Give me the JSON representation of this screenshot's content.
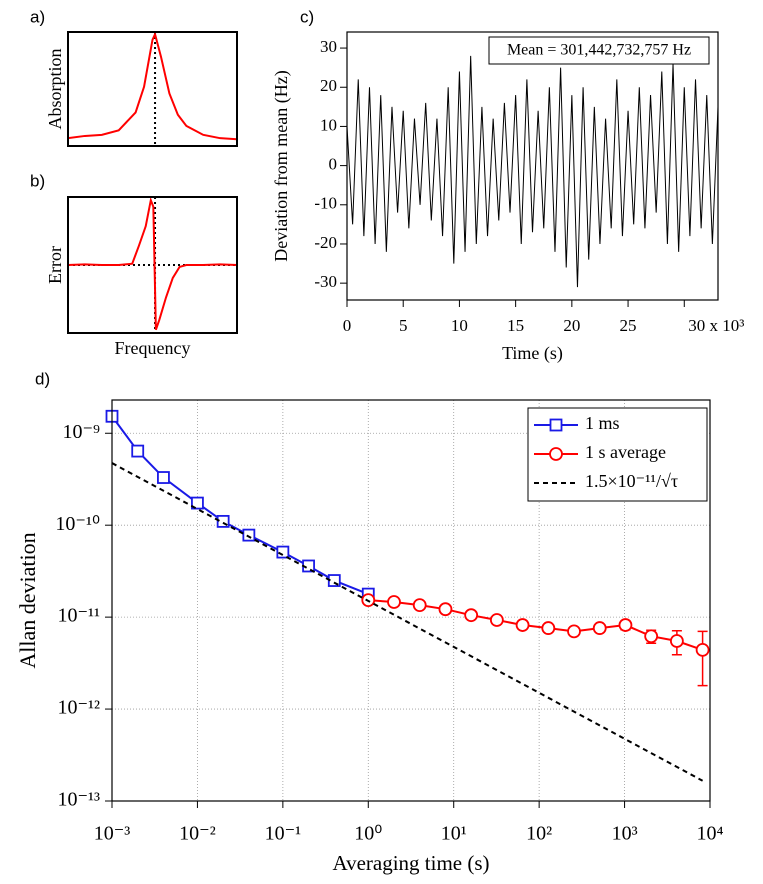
{
  "chart_data": [
    {
      "type": "line",
      "panel": "a)",
      "ylabel": "Absorption",
      "xlim": [
        0,
        1
      ],
      "ylim": [
        0,
        1.02
      ],
      "marker_x": 0.515,
      "series": [
        {
          "color": "#ff0000",
          "x": [
            0,
            0.1,
            0.2,
            0.3,
            0.4,
            0.45,
            0.5,
            0.515,
            0.55,
            0.6,
            0.65,
            0.7,
            0.8,
            0.9,
            1
          ],
          "values": [
            0.07,
            0.09,
            0.1,
            0.14,
            0.3,
            0.53,
            0.95,
            1.0,
            0.8,
            0.47,
            0.28,
            0.18,
            0.1,
            0.07,
            0.06
          ]
        }
      ]
    },
    {
      "type": "line",
      "panel": "b)",
      "ylabel": "Error",
      "xlabel": "Frequency",
      "xlim": [
        0,
        1
      ],
      "ylim": [
        -1.05,
        1.05
      ],
      "marker_x": 0.515,
      "marker_y": 0,
      "series": [
        {
          "color": "#ff0000",
          "x": [
            0,
            0.1,
            0.2,
            0.3,
            0.38,
            0.42,
            0.46,
            0.49,
            0.505,
            0.52,
            0.54,
            0.58,
            0.62,
            0.66,
            0.7,
            0.8,
            0.9,
            1
          ],
          "values": [
            0,
            0.01,
            0,
            0,
            0.02,
            0.3,
            0.6,
            1.0,
            0.9,
            -1.0,
            -0.85,
            -0.5,
            -0.2,
            -0.03,
            0,
            0,
            0.01,
            0
          ]
        }
      ]
    },
    {
      "type": "line",
      "panel": "c)",
      "ylabel": "Deviation from mean (Hz)",
      "xlabel": "Time (s)",
      "annotation": "Mean = 301,442,732,757 Hz",
      "xlim": [
        0,
        33
      ],
      "ylim": [
        -34.3,
        34.1
      ],
      "xticks": [
        0,
        5,
        10,
        15,
        20,
        25,
        {
          "value": 30,
          "label": "30 x 10³"
        }
      ],
      "yticks": [
        -30,
        -20,
        -10,
        0,
        10,
        20,
        30
      ],
      "series": [
        {
          "color": "#000000",
          "x": [
            0,
            0.5,
            1,
            1.5,
            2,
            2.5,
            3,
            3.5,
            4,
            4.5,
            5,
            5.5,
            6,
            6.5,
            7,
            7.5,
            8,
            8.5,
            9,
            9.5,
            10,
            10.5,
            11,
            11.5,
            12,
            12.5,
            13,
            13.5,
            14,
            14.5,
            15,
            15.5,
            16,
            16.5,
            17,
            17.5,
            18,
            18.5,
            19,
            19.5,
            20,
            20.5,
            21,
            21.5,
            22,
            22.5,
            23,
            23.5,
            24,
            24.5,
            25,
            25.5,
            26,
            26.5,
            27,
            27.5,
            28,
            28.5,
            29,
            29.5,
            30,
            30.5,
            31,
            31.5,
            32,
            32.5,
            33
          ],
          "values": [
            10,
            -15,
            22,
            -18,
            20,
            -20,
            18,
            -22,
            15,
            -12,
            14,
            -16,
            12,
            -10,
            16,
            -14,
            12,
            -18,
            20,
            -25,
            24,
            -22,
            28,
            -20,
            15,
            -18,
            12,
            -14,
            16,
            -12,
            18,
            -20,
            22,
            -17,
            14,
            -16,
            20,
            -22,
            25,
            -26,
            18,
            -31,
            20,
            -24,
            15,
            -20,
            12,
            -16,
            22,
            -18,
            14,
            -15,
            20,
            -16,
            18,
            -12,
            24,
            -20,
            26,
            -22,
            20,
            -18,
            22,
            -16,
            18,
            -20,
            15
          ]
        }
      ]
    },
    {
      "type": "line",
      "panel": "d)",
      "ylabel": "Allan deviation",
      "xlabel": "Averaging time (s)",
      "xscale": "log",
      "yscale": "log",
      "grid": true,
      "legend": "upper right",
      "xlim": [
        0.001,
        10000
      ],
      "ylim": [
        1e-13,
        2.3e-09
      ],
      "xticks": [
        {
          "value": 0.001,
          "label": "10⁻³"
        },
        {
          "value": 0.01,
          "label": "10⁻²"
        },
        {
          "value": 0.1,
          "label": "10⁻¹"
        },
        {
          "value": 1,
          "label": "10⁰"
        },
        {
          "value": 10,
          "label": "10¹"
        },
        {
          "value": 100,
          "label": "10²"
        },
        {
          "value": 1000,
          "label": "10³"
        },
        {
          "value": 10000,
          "label": "10⁴"
        }
      ],
      "yticks": [
        {
          "value": 1e-13,
          "label": "10⁻¹³"
        },
        {
          "value": 1e-12,
          "label": "10⁻¹²"
        },
        {
          "value": 1e-11,
          "label": "10⁻¹¹"
        },
        {
          "value": 1e-10,
          "label": "10⁻¹⁰"
        },
        {
          "value": 1e-09,
          "label": "10⁻⁹"
        }
      ],
      "series": [
        {
          "name": "1 ms",
          "color": "#1a1ae6",
          "marker": "square",
          "x": [
            0.001,
            0.002,
            0.004,
            0.01,
            0.02,
            0.04,
            0.1,
            0.2,
            0.4,
            1
          ],
          "values": [
            1.53e-09,
            6.4e-10,
            3.3e-10,
            1.74e-10,
            1.1e-10,
            7.8e-11,
            5.1e-11,
            3.6e-11,
            2.5e-11,
            1.78e-11
          ]
        },
        {
          "name": "1 s average",
          "color": "#ff0000",
          "marker": "circle",
          "x": [
            1,
            2,
            4,
            8,
            16,
            32,
            64,
            128,
            256,
            512,
            1024,
            2048,
            4096,
            8192
          ],
          "values": [
            1.53e-11,
            1.46e-11,
            1.35e-11,
            1.22e-11,
            1.05e-11,
            9.3e-12,
            8.2e-12,
            7.6e-12,
            7e-12,
            7.6e-12,
            8.2e-12,
            6.2e-12,
            5.5e-12,
            4.4e-12
          ],
          "errors": [
            null,
            null,
            null,
            null,
            null,
            null,
            null,
            null,
            null,
            7e-13,
            9e-13,
            1e-12,
            1.6e-12,
            2.6e-12
          ]
        },
        {
          "name": "1.5×10⁻¹¹/√τ",
          "color": "#000000",
          "dash": true,
          "x": [
            0.001,
            8192
          ],
          "values": [
            4.74e-10,
            1.66e-13
          ]
        }
      ]
    }
  ]
}
